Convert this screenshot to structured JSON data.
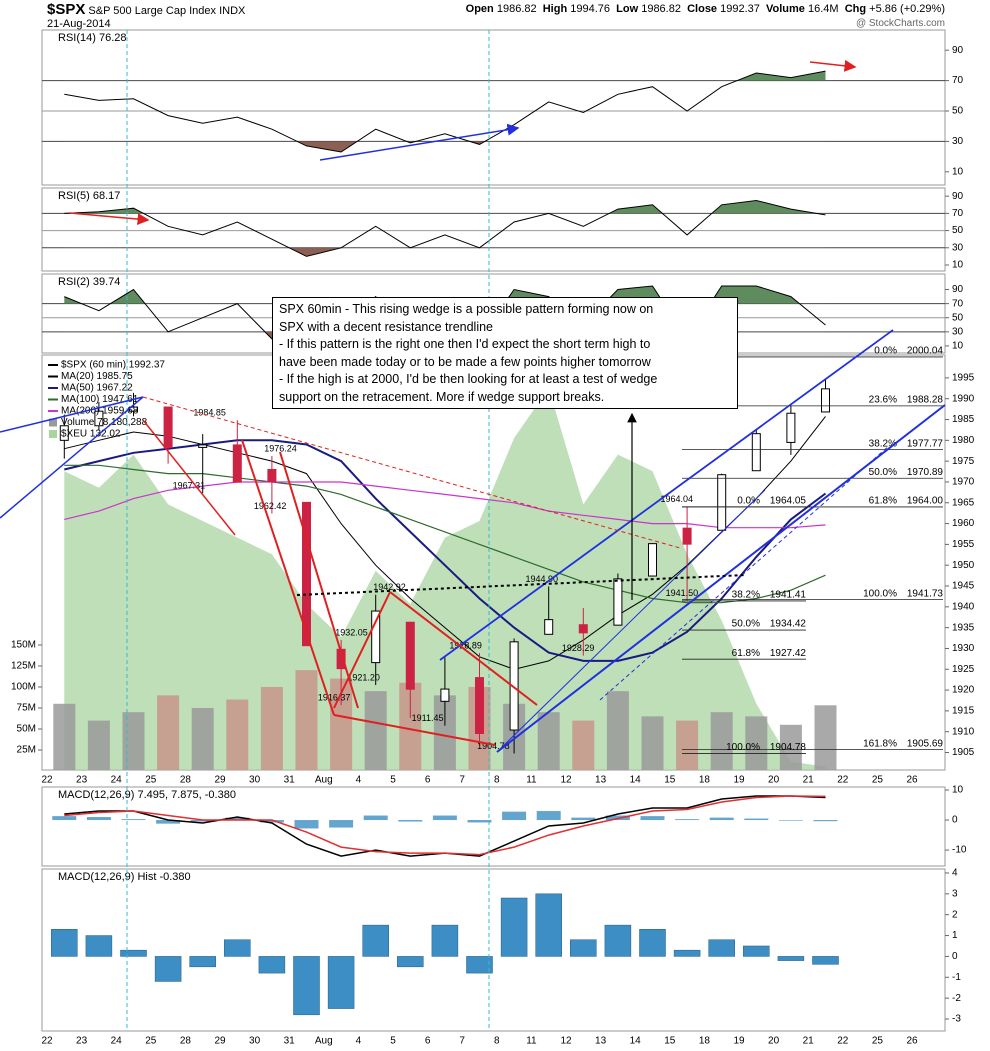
{
  "header": {
    "symbol": "$SPX",
    "name": "S&P 500 Large Cap Index INDX",
    "date": "21-Aug-2014",
    "source": "@ StockCharts.com",
    "quote": [
      {
        "k": "Open",
        "v": "1986.82"
      },
      {
        "k": "High",
        "v": "1994.76"
      },
      {
        "k": "Low",
        "v": "1986.82"
      },
      {
        "k": "Close",
        "v": "1992.37"
      },
      {
        "k": "Volume",
        "v": "16.4M"
      },
      {
        "k": "Chg",
        "v": "+5.86 (+0.29%)"
      }
    ]
  },
  "annotation": {
    "lines": [
      "SPX 60min - This rising wedge is a possible pattern forming now on",
      "SPX with a decent resistance trendline",
      "- If this pattern is the right one then I'd expect the short term high to",
      "have been made today or to be made a few points higher tomorrow",
      "- If the high is at 2000, I'd be then looking for at least a test of wedge",
      "support on the retracement. More if wedge support breaks."
    ]
  },
  "chart_data": [
    {
      "type": "line",
      "title": "RSI(14) 76.28",
      "color": "#000000",
      "ylim": [
        1.3,
        103.3
      ],
      "yticks": [
        90,
        70,
        50,
        30,
        10
      ],
      "overbought": 70,
      "midline": 50,
      "oversold": 30,
      "fill_above_color": "#5f8c5f",
      "fill_below_color": "#8c5f55",
      "values": [
        61,
        57,
        58,
        47,
        42,
        46,
        38,
        27,
        23,
        38,
        29,
        35,
        28,
        41,
        56,
        49,
        61,
        66,
        50,
        66,
        75,
        72,
        76.28,
        null,
        null,
        null
      ]
    },
    {
      "type": "line",
      "title": "RSI(5) 68.17",
      "color": "#000000",
      "ylim": [
        3,
        99.5
      ],
      "yticks": [
        90,
        70,
        50,
        30,
        10
      ],
      "overbought": 70,
      "midline": 50,
      "oversold": 30,
      "fill_above_color": "#5f8c5f",
      "fill_below_color": "#8c5f55",
      "values": [
        70,
        72,
        76,
        55,
        45,
        60,
        40,
        20,
        30,
        55,
        30,
        45,
        30,
        60,
        70,
        55,
        75,
        80,
        45,
        80,
        85,
        75,
        68.17,
        null,
        null,
        null
      ]
    },
    {
      "type": "line",
      "title": "RSI(2) 39.74",
      "color": "#000000",
      "ylim": [
        0,
        112
      ],
      "yticks": [
        90,
        70,
        50,
        30,
        10
      ],
      "overbought": 70,
      "midline": 50,
      "oversold": 30,
      "fill_above_color": "#5f8c5f",
      "fill_below_color": "#8c5f55",
      "values": [
        80,
        60,
        90,
        30,
        50,
        70,
        20,
        10,
        40,
        80,
        20,
        60,
        20,
        90,
        80,
        40,
        90,
        95,
        20,
        95,
        95,
        80,
        39.74,
        null,
        null,
        null
      ]
    },
    {
      "type": "candlestick",
      "name": "$SPX (60 min) 1992.37",
      "categories": [
        "22",
        "23",
        "24",
        "25",
        "28",
        "29",
        "30",
        "31",
        "Aug",
        "4",
        "5",
        "6",
        "7",
        "8",
        "11",
        "12",
        "13",
        "14",
        "15",
        "18",
        "19",
        "20",
        "21",
        "22",
        "25",
        "26"
      ],
      "open": [
        1980,
        1983.5,
        1987,
        1988,
        1978.3,
        1978.9,
        1973,
        1965.1,
        1929.8,
        1926.6,
        1936.3,
        1917.3,
        1923,
        1910.4,
        1933.4,
        1935.7,
        1935.6,
        1947.4,
        1958.9,
        1958.4,
        1972.7,
        1979.5,
        1986.82,
        null,
        null,
        null
      ],
      "high": [
        1986.2,
        1989.2,
        1991.4,
        1988,
        1981.5,
        1984.85,
        1976.24,
        1965.1,
        1932.05,
        1942.92,
        1936.3,
        1927.9,
        1928.89,
        1932.4,
        1944.9,
        1939.7,
        1948,
        1955.23,
        1964.04,
        1971.99,
        1982.57,
        1988.4,
        1994.76,
        null,
        null,
        null
      ],
      "low": [
        1975.6,
        1982.4,
        1985.8,
        1974.4,
        1967.31,
        1969.9,
        1962.42,
        1930.7,
        1916.37,
        1921.2,
        1913.3,
        1911.45,
        1906.7,
        1904.78,
        1933.4,
        1928.29,
        1935.6,
        1947.4,
        1941.5,
        1958.4,
        1972.7,
        1976.5,
        1986.82,
        null,
        null,
        null
      ],
      "close": [
        1983.5,
        1987,
        1988,
        1978.3,
        1978.9,
        1969.95,
        1970.07,
        1930.67,
        1925.15,
        1938.99,
        1920.21,
        1920.24,
        1909.57,
        1931.59,
        1936.92,
        1933.75,
        1946.72,
        1955.18,
        1955.06,
        1971.74,
        1981.6,
        1986.51,
        1992.37,
        null,
        null,
        null
      ],
      "up_color": "#ffffff",
      "down_color": "#cc2244",
      "ylim": [
        1900.8,
        2000.5
      ],
      "yticks": [
        1905,
        1910,
        1915,
        1920,
        1925,
        1930,
        1935,
        1940,
        1945,
        1950,
        1955,
        1960,
        1965,
        1970,
        1975,
        1980,
        1985,
        1990,
        1995
      ],
      "y2lim": [
        1200000,
        495000000
      ],
      "y2ticks": [
        {
          "value": 25000000,
          "label": "25M"
        },
        {
          "value": 50000000,
          "label": "50M"
        },
        {
          "value": 75000000,
          "label": "75M"
        },
        {
          "value": 100000000,
          "label": "100M"
        },
        {
          "value": 125000000,
          "label": "125M"
        },
        {
          "value": 150000000,
          "label": "150M"
        }
      ],
      "y3lim": [
        132,
        134.5
      ],
      "series": [
        {
          "name": "MA(20) 1985.75",
          "color": "#000000",
          "width": 1,
          "values": [
            1978,
            1980,
            1982,
            1981,
            1979,
            1977,
            1975,
            1972,
            1960,
            1950,
            1942,
            1935,
            1928,
            1925,
            1927,
            1932,
            1938,
            1943,
            1950,
            1958,
            1966,
            1975,
            1985.75,
            null,
            null,
            null
          ]
        },
        {
          "name": "MA(50) 1967.22",
          "color": "#1a1a80",
          "width": 2,
          "values": [
            1973,
            1975,
            1977,
            1978,
            1979,
            1980,
            1980,
            1979,
            1975,
            1966,
            1958,
            1950,
            1942,
            1935,
            1929,
            1927,
            1927,
            1929,
            1934,
            1942,
            1952,
            1961,
            1967.22,
            null,
            null,
            null
          ]
        },
        {
          "name": "MA(100) 1947.61",
          "color": "#2e6b2e",
          "width": 1.2,
          "values": [
            1974,
            1974,
            1973,
            1972,
            1972,
            1971,
            1970,
            1969,
            1967,
            1964,
            1961,
            1958,
            1955,
            1952,
            1949,
            1946,
            1944,
            1942,
            1941,
            1941,
            1942,
            1944,
            1947.61,
            null,
            null,
            null
          ]
        },
        {
          "name": "MA(200) 1959.68",
          "color": "#cc33cc",
          "width": 1.2,
          "values": [
            1961,
            1963,
            1966,
            1968,
            1969,
            1970,
            1970,
            1970,
            1970,
            1969,
            1968,
            1967,
            1966,
            1965,
            1963,
            1962,
            1961,
            1960,
            1960,
            1959,
            1959,
            1959,
            1959.68,
            null,
            null,
            null
          ]
        },
        {
          "name": "Volume 78,180,288",
          "type": "bar",
          "axis": "y2",
          "color": "#9a9a9a",
          "down_color": "#c8958a",
          "values": [
            80000000,
            60000000,
            70000000,
            90000000,
            75000000,
            85000000,
            100000000,
            120000000,
            110000000,
            95000000,
            105000000,
            90000000,
            100000000,
            80000000,
            70000000,
            60000000,
            95000000,
            65000000,
            60000000,
            70000000,
            65000000,
            55000000,
            78180288,
            null,
            null,
            null
          ]
        },
        {
          "name": "$XEU 132.02",
          "type": "area",
          "axis": "y3",
          "color": "#a8d4a0",
          "values": [
            133.8,
            133.7,
            133.9,
            133.6,
            133.5,
            133.4,
            133.3,
            133,
            132.8,
            133.2,
            133,
            133.4,
            133.5,
            134,
            134.3,
            133.6,
            133.9,
            133.8,
            133.3,
            132.9,
            132.4,
            132.05,
            132.02,
            null,
            null,
            null
          ]
        }
      ],
      "annotations": [
        {
          "x": 4.7,
          "value": 1984.85
        },
        {
          "x": 4.1,
          "value": 1967.31
        },
        {
          "x": 6.75,
          "value": 1976.24
        },
        {
          "x": 6.45,
          "value": 1962.42
        },
        {
          "x": 9.9,
          "value": 1942.92
        },
        {
          "x": 8.8,
          "value": 1932.05
        },
        {
          "x": 9.15,
          "value": 1921.2,
          "label": "1921.20"
        },
        {
          "x": 8.3,
          "value": 1916.37
        },
        {
          "x": 11,
          "value": 1911.45
        },
        {
          "x": 12.1,
          "value": 1928.89
        },
        {
          "x": 12.9,
          "value": 1904.78
        },
        {
          "x": 14.3,
          "value": 1944.9,
          "label": "1944.90"
        },
        {
          "x": 15.35,
          "value": 1928.29
        },
        {
          "x": 18.2,
          "value": 1964.04
        },
        {
          "x": 18.35,
          "value": 1941.5,
          "label": "1941.50"
        }
      ],
      "fib_levels": [
        {
          "pct": "0.0%",
          "value": 2000.04
        },
        {
          "pct": "23.6%",
          "value": 1988.28
        },
        {
          "pct": "38.2%",
          "value": 1977.77
        },
        {
          "pct": "50.0%",
          "value": 1970.89
        },
        {
          "pct": "61.8%",
          "value": 1964,
          "label": "1964.00"
        },
        {
          "pct": "100.0%",
          "value": 1941.73
        },
        {
          "pct": "161.8%",
          "value": 1905.69
        }
      ],
      "fib_levels_2": [
        {
          "pct": "0.0%",
          "value": 1964.05
        },
        {
          "pct": "38.2%",
          "value": 1941.41
        },
        {
          "pct": "50.0%",
          "value": 1934.42
        },
        {
          "pct": "61.8%",
          "value": 1927.42
        },
        {
          "pct": "100.0%",
          "value": 1904.78
        }
      ]
    },
    {
      "type": "line",
      "title": "MACD(12,26,9) 7.495, 7.875, -0.380",
      "ylim": [
        -15.3,
        11
      ],
      "yticks": [
        10,
        0,
        -10
      ],
      "series": [
        {
          "color": "#000000",
          "values": [
            2,
            3,
            3,
            0,
            -1,
            1,
            -1,
            -8,
            -12,
            -10,
            -12,
            -11,
            -12,
            -7,
            -2,
            -1,
            2,
            4,
            4,
            7,
            8,
            8,
            7.495,
            null,
            null,
            null
          ]
        },
        {
          "color": "#e03030",
          "values": [
            1.5,
            2.5,
            3,
            1.5,
            0,
            0,
            0,
            -4,
            -9,
            -10.5,
            -11,
            -11,
            -11.5,
            -9,
            -5,
            -2,
            0.5,
            3,
            3.5,
            6,
            7.5,
            8,
            7.875,
            null,
            null,
            null
          ]
        }
      ]
    },
    {
      "type": "bar",
      "title": "MACD(12,26,9) Hist -0.380",
      "color": "#3d8ec4",
      "categories": [
        "22",
        "23",
        "24",
        "25",
        "28",
        "29",
        "30",
        "31",
        "Aug",
        "4",
        "5",
        "6",
        "7",
        "8",
        "11",
        "12",
        "13",
        "14",
        "15",
        "18",
        "19",
        "20",
        "21",
        "22",
        "25",
        "26"
      ],
      "ylim": [
        -3.575,
        4.19
      ],
      "yticks": [
        4,
        3,
        2,
        1,
        0,
        -1,
        -2,
        -3
      ],
      "values": [
        1.3,
        1,
        0.3,
        -1.2,
        -0.5,
        0.8,
        -0.8,
        -2.8,
        -2.5,
        1.5,
        -0.5,
        1.5,
        -0.8,
        2.8,
        3,
        0.8,
        1.5,
        1.3,
        0.3,
        0.8,
        0.5,
        -0.2,
        -0.38,
        null,
        null,
        null
      ]
    }
  ]
}
